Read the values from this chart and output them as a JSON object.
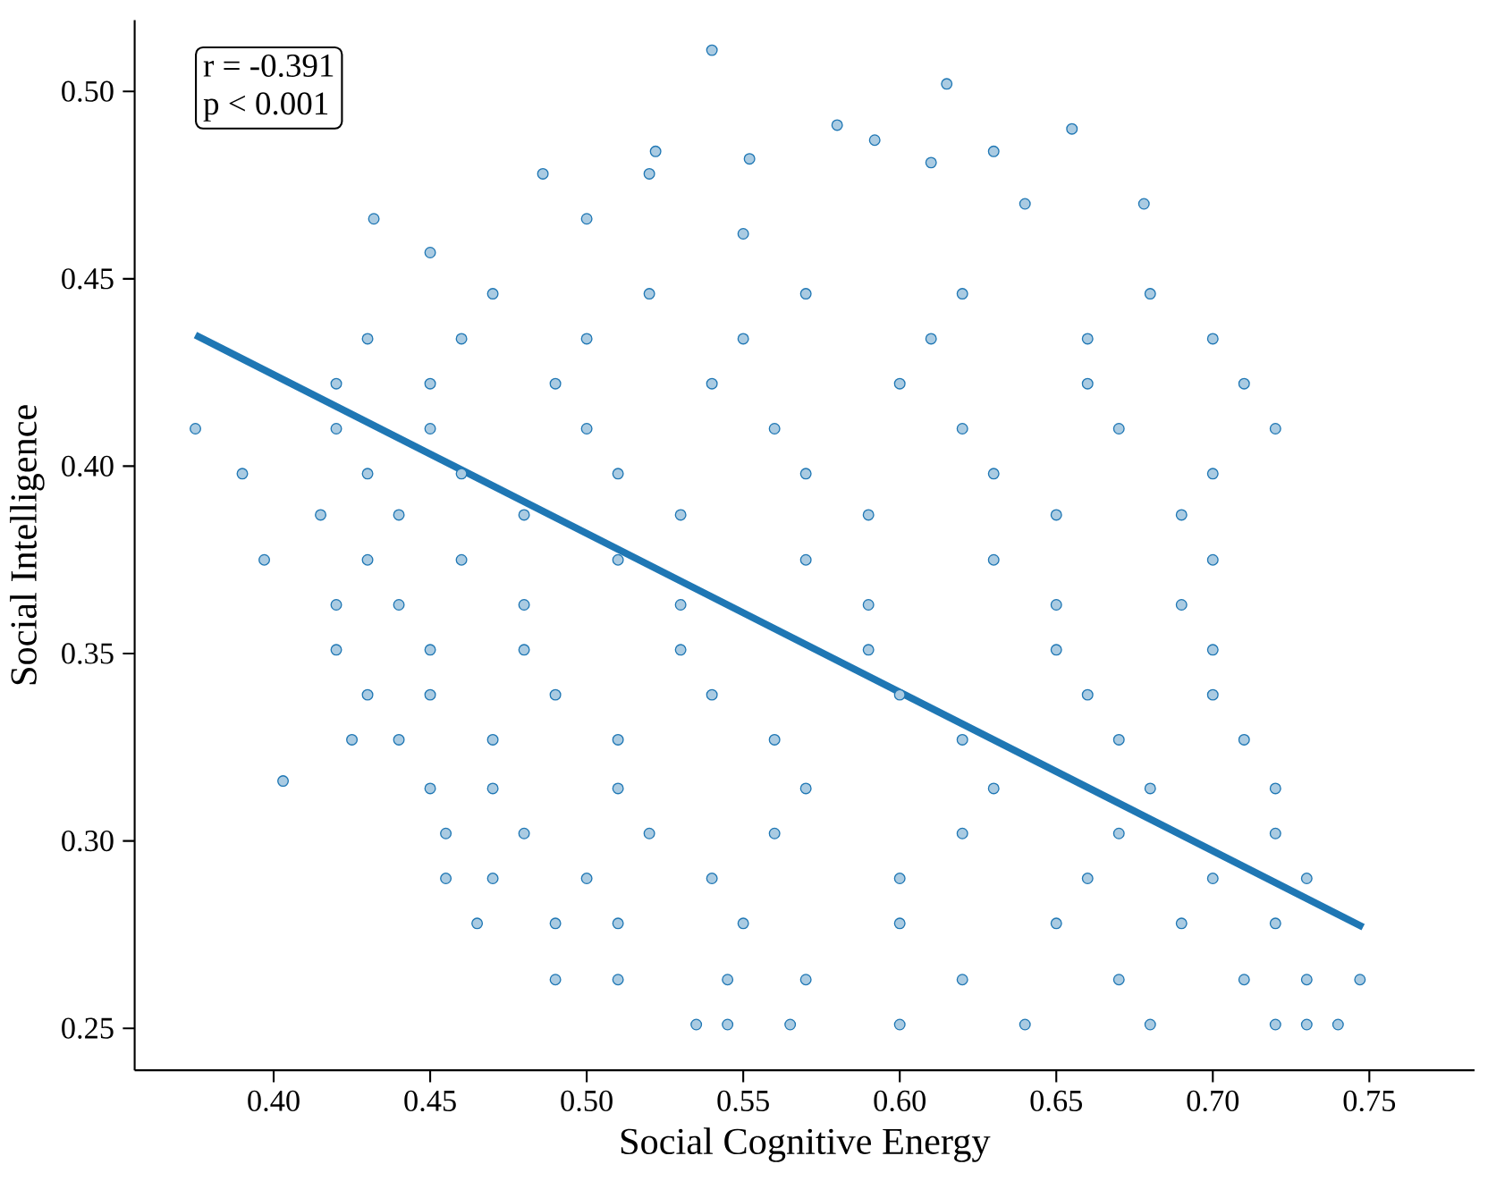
{
  "chart_data": {
    "type": "scatter",
    "xlabel": "Social Cognitive Energy",
    "ylabel": "Social Intelligence",
    "annotations": [
      "r = -0.391",
      "p < 0.001"
    ],
    "xlim": [
      0.3556,
      0.7836
    ],
    "ylim": [
      0.2388,
      0.519
    ],
    "xticks": [
      {
        "value": 0.4,
        "label": "0.40"
      },
      {
        "value": 0.45,
        "label": "0.45"
      },
      {
        "value": 0.5,
        "label": "0.50"
      },
      {
        "value": 0.55,
        "label": "0.55"
      },
      {
        "value": 0.6,
        "label": "0.60"
      },
      {
        "value": 0.65,
        "label": "0.65"
      },
      {
        "value": 0.7,
        "label": "0.70"
      },
      {
        "value": 0.75,
        "label": "0.75"
      }
    ],
    "yticks": [
      {
        "value": 0.25,
        "label": "0.25"
      },
      {
        "value": 0.3,
        "label": "0.30"
      },
      {
        "value": 0.35,
        "label": "0.35"
      },
      {
        "value": 0.4,
        "label": "0.40"
      },
      {
        "value": 0.45,
        "label": "0.45"
      },
      {
        "value": 0.5,
        "label": "0.50"
      }
    ],
    "grid": false,
    "series": [
      {
        "marker": "circle",
        "color": "#1f77b4",
        "x": [
          0.535,
          0.545,
          0.565,
          0.6,
          0.64,
          0.68,
          0.72,
          0.73,
          0.74,
          0.49,
          0.51,
          0.545,
          0.57,
          0.62,
          0.67,
          0.71,
          0.73,
          0.747,
          0.465,
          0.49,
          0.51,
          0.55,
          0.6,
          0.65,
          0.69,
          0.72,
          0.455,
          0.47,
          0.5,
          0.54,
          0.6,
          0.66,
          0.7,
          0.73,
          0.455,
          0.48,
          0.52,
          0.56,
          0.62,
          0.67,
          0.72,
          0.403,
          0.45,
          0.47,
          0.51,
          0.57,
          0.63,
          0.68,
          0.72,
          0.425,
          0.44,
          0.47,
          0.51,
          0.56,
          0.62,
          0.67,
          0.71,
          0.43,
          0.45,
          0.49,
          0.54,
          0.6,
          0.66,
          0.7,
          0.42,
          0.45,
          0.48,
          0.53,
          0.59,
          0.65,
          0.7,
          0.42,
          0.44,
          0.48,
          0.53,
          0.59,
          0.65,
          0.69,
          0.397,
          0.43,
          0.46,
          0.51,
          0.57,
          0.63,
          0.7,
          0.415,
          0.44,
          0.48,
          0.53,
          0.59,
          0.65,
          0.69,
          0.39,
          0.43,
          0.46,
          0.51,
          0.57,
          0.63,
          0.7,
          0.375,
          0.42,
          0.45,
          0.5,
          0.56,
          0.62,
          0.67,
          0.72,
          0.42,
          0.45,
          0.49,
          0.54,
          0.6,
          0.66,
          0.71,
          0.43,
          0.46,
          0.5,
          0.55,
          0.61,
          0.66,
          0.7,
          0.47,
          0.52,
          0.57,
          0.62,
          0.68,
          0.432,
          0.486,
          0.52,
          0.522,
          0.54,
          0.552,
          0.58,
          0.592,
          0.615,
          0.63,
          0.655,
          0.61,
          0.5,
          0.64,
          0.678,
          0.45,
          0.55
        ],
        "values": [
          0.251,
          0.251,
          0.251,
          0.251,
          0.251,
          0.251,
          0.251,
          0.251,
          0.251,
          0.263,
          0.263,
          0.263,
          0.263,
          0.263,
          0.263,
          0.263,
          0.263,
          0.263,
          0.278,
          0.278,
          0.278,
          0.278,
          0.278,
          0.278,
          0.278,
          0.278,
          0.29,
          0.29,
          0.29,
          0.29,
          0.29,
          0.29,
          0.29,
          0.29,
          0.302,
          0.302,
          0.302,
          0.302,
          0.302,
          0.302,
          0.302,
          0.316,
          0.314,
          0.314,
          0.314,
          0.314,
          0.314,
          0.314,
          0.314,
          0.327,
          0.327,
          0.327,
          0.327,
          0.327,
          0.327,
          0.327,
          0.327,
          0.339,
          0.339,
          0.339,
          0.339,
          0.339,
          0.339,
          0.339,
          0.351,
          0.351,
          0.351,
          0.351,
          0.351,
          0.351,
          0.351,
          0.363,
          0.363,
          0.363,
          0.363,
          0.363,
          0.363,
          0.363,
          0.375,
          0.375,
          0.375,
          0.375,
          0.375,
          0.375,
          0.375,
          0.387,
          0.387,
          0.387,
          0.387,
          0.387,
          0.387,
          0.387,
          0.398,
          0.398,
          0.398,
          0.398,
          0.398,
          0.398,
          0.398,
          0.41,
          0.41,
          0.41,
          0.41,
          0.41,
          0.41,
          0.41,
          0.41,
          0.422,
          0.422,
          0.422,
          0.422,
          0.422,
          0.422,
          0.422,
          0.434,
          0.434,
          0.434,
          0.434,
          0.434,
          0.434,
          0.434,
          0.446,
          0.446,
          0.446,
          0.446,
          0.446,
          0.466,
          0.478,
          0.478,
          0.484,
          0.511,
          0.482,
          0.491,
          0.487,
          0.502,
          0.484,
          0.49,
          0.481,
          0.466,
          0.47,
          0.47,
          0.457,
          0.462
        ]
      },
      {
        "type": "line",
        "marker": "none",
        "color": "#1f77b4",
        "x": [
          0.375,
          0.748
        ],
        "values": [
          0.435,
          0.277
        ]
      }
    ]
  }
}
